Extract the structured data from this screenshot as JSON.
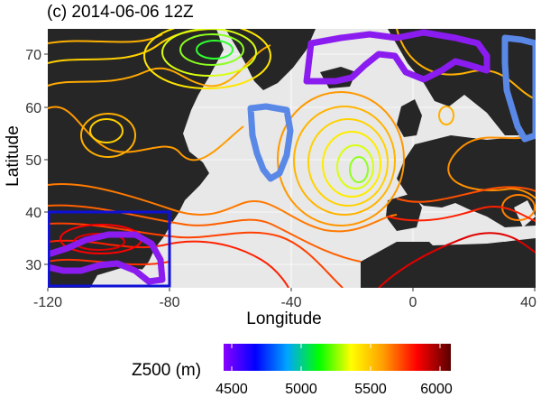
{
  "title": "(c) 2014-06-06 12Z",
  "map": {
    "xlabel": "Longitude",
    "ylabel": "Latitude",
    "x_ticks": [
      "-120",
      "-80",
      "-40",
      "0",
      "40"
    ],
    "y_ticks": [
      "30",
      "40",
      "50",
      "60",
      "70"
    ],
    "colors": {
      "land": "#262626",
      "ocean": "#e8e8e8",
      "grid": "#ffffff",
      "purple_contour": "#8b1cf0",
      "blue_contour": "#5a88e6",
      "box": "#0f10d8"
    }
  },
  "legend": {
    "title": "Z500 (m)",
    "ticks": [
      "4500",
      "5000",
      "5500",
      "6000"
    ],
    "gradient": [
      "#8a00ff",
      "#0000ff",
      "#00a5ff",
      "#00ff00",
      "#ffff00",
      "#ffa000",
      "#ff0000",
      "#5a0000"
    ]
  }
}
